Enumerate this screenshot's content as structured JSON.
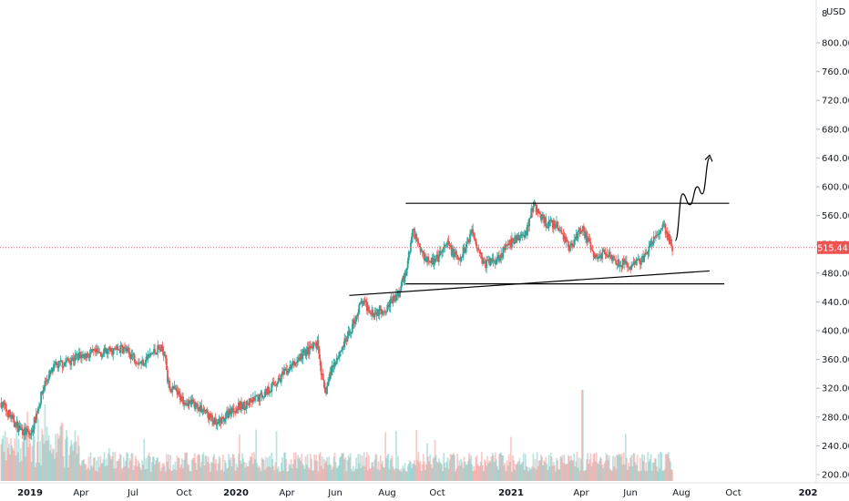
{
  "chart_data": {
    "type": "candlestick",
    "currency_label": "USD",
    "top_clipped_label": "8",
    "y_axis": {
      "range": [
        200,
        840
      ],
      "ticks": [
        200,
        240,
        280,
        320,
        360,
        400,
        440,
        480,
        520,
        560,
        600,
        640,
        680,
        720,
        760,
        800
      ]
    },
    "x_axis": {
      "labels": [
        "2019",
        "Apr",
        "Jul",
        "Oct",
        "2020",
        "Apr",
        "Jun",
        "Aug",
        "Oct",
        "2021",
        "Apr",
        "Jun",
        "Aug",
        "Oct",
        "202"
      ],
      "bold_labels": [
        "2019",
        "2020",
        "2021",
        "202"
      ]
    },
    "current_price": 515.44,
    "price_path": [
      {
        "t": 2018.88,
        "p": 300
      },
      {
        "t": 2018.95,
        "p": 265
      },
      {
        "t": 2019.0,
        "p": 255
      },
      {
        "t": 2019.06,
        "p": 330
      },
      {
        "t": 2019.1,
        "p": 350
      },
      {
        "t": 2019.2,
        "p": 365
      },
      {
        "t": 2019.3,
        "p": 370
      },
      {
        "t": 2019.38,
        "p": 375
      },
      {
        "t": 2019.45,
        "p": 355
      },
      {
        "t": 2019.52,
        "p": 375
      },
      {
        "t": 2019.55,
        "p": 370
      },
      {
        "t": 2019.56,
        "p": 325
      },
      {
        "t": 2019.62,
        "p": 305
      },
      {
        "t": 2019.7,
        "p": 292
      },
      {
        "t": 2019.76,
        "p": 268
      },
      {
        "t": 2019.82,
        "p": 290
      },
      {
        "t": 2019.9,
        "p": 300
      },
      {
        "t": 2019.96,
        "p": 315
      },
      {
        "t": 2020.05,
        "p": 345
      },
      {
        "t": 2020.12,
        "p": 370
      },
      {
        "t": 2020.17,
        "p": 380
      },
      {
        "t": 2020.2,
        "p": 310
      },
      {
        "t": 2020.23,
        "p": 350
      },
      {
        "t": 2020.3,
        "p": 395
      },
      {
        "t": 2020.35,
        "p": 440
      },
      {
        "t": 2020.4,
        "p": 425
      },
      {
        "t": 2020.45,
        "p": 432
      },
      {
        "t": 2020.5,
        "p": 450
      },
      {
        "t": 2020.53,
        "p": 480
      },
      {
        "t": 2020.56,
        "p": 540
      },
      {
        "t": 2020.6,
        "p": 505
      },
      {
        "t": 2020.65,
        "p": 495
      },
      {
        "t": 2020.7,
        "p": 520
      },
      {
        "t": 2020.75,
        "p": 495
      },
      {
        "t": 2020.8,
        "p": 540
      },
      {
        "t": 2020.85,
        "p": 492
      },
      {
        "t": 2020.9,
        "p": 500
      },
      {
        "t": 2020.97,
        "p": 525
      },
      {
        "t": 2021.02,
        "p": 535
      },
      {
        "t": 2021.05,
        "p": 575
      },
      {
        "t": 2021.1,
        "p": 550
      },
      {
        "t": 2021.15,
        "p": 545
      },
      {
        "t": 2021.2,
        "p": 515
      },
      {
        "t": 2021.25,
        "p": 545
      },
      {
        "t": 2021.3,
        "p": 500
      },
      {
        "t": 2021.35,
        "p": 510
      },
      {
        "t": 2021.4,
        "p": 495
      },
      {
        "t": 2021.45,
        "p": 490
      },
      {
        "t": 2021.5,
        "p": 500
      },
      {
        "t": 2021.55,
        "p": 530
      },
      {
        "t": 2021.58,
        "p": 545
      },
      {
        "t": 2021.62,
        "p": 515
      }
    ],
    "trendlines": [
      {
        "type": "horizontal_resistance",
        "from": {
          "t": 2020.53,
          "p": 577
        },
        "to": {
          "t": 2021.85,
          "p": 577
        }
      },
      {
        "type": "horizontal_support",
        "from": {
          "t": 2020.53,
          "p": 465
        },
        "to": {
          "t": 2021.83,
          "p": 465
        }
      },
      {
        "type": "rising_support",
        "from": {
          "t": 2020.3,
          "p": 449
        },
        "to": {
          "t": 2021.77,
          "p": 483
        }
      }
    ],
    "projection_path": [
      {
        "t": 2021.63,
        "p": 525
      },
      {
        "t": 2021.66,
        "p": 590
      },
      {
        "t": 2021.69,
        "p": 575
      },
      {
        "t": 2021.72,
        "p": 600
      },
      {
        "t": 2021.74,
        "p": 590
      },
      {
        "t": 2021.77,
        "p": 640
      }
    ],
    "colors": {
      "up": "#26a69a",
      "down": "#ef5350",
      "volume_up": "#26a69a",
      "volume_down": "#ef5350",
      "price_line": "#ef5350",
      "price_label_bg": "#ef5350",
      "drawing": "#000000",
      "grid": "#f0f3fa",
      "axis_text": "#131722"
    },
    "grid": false
  }
}
